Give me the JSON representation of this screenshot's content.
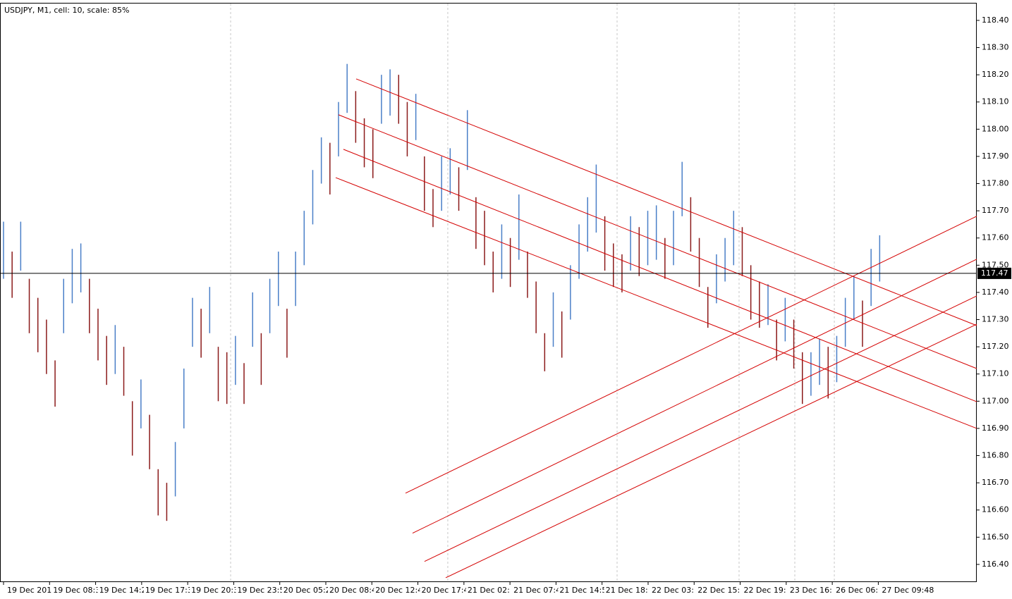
{
  "chart_data": {
    "type": "range_bar",
    "title": "USDJPY, M1, cell: 10, scale: 85%",
    "up_color": "#4a7fc8",
    "down_color": "#8b1a1a",
    "line_color": "#d40000",
    "price_line_color": "#000000",
    "xlim": [
      -0.41,
      113.3
    ],
    "ylim": [
      116.335,
      118.462
    ],
    "yticks": [
      {
        "value": 116.4,
        "label": "116.40"
      },
      {
        "value": 116.5,
        "label": "116.50"
      },
      {
        "value": 116.6,
        "label": "116.60"
      },
      {
        "value": 116.7,
        "label": "116.70"
      },
      {
        "value": 116.8,
        "label": "116.80"
      },
      {
        "value": 116.9,
        "label": "116.90"
      },
      {
        "value": 117.0,
        "label": "117.00"
      },
      {
        "value": 117.1,
        "label": "117.10"
      },
      {
        "value": 117.2,
        "label": "117.20"
      },
      {
        "value": 117.3,
        "label": "117.30"
      },
      {
        "value": 117.4,
        "label": "117.40"
      },
      {
        "value": 117.5,
        "label": "117.50"
      },
      {
        "value": 117.6,
        "label": "117.60"
      },
      {
        "value": 117.7,
        "label": "117.70"
      },
      {
        "value": 117.8,
        "label": "117.80"
      },
      {
        "value": 117.9,
        "label": "117.90"
      },
      {
        "value": 118.0,
        "label": "118.00"
      },
      {
        "value": 118.1,
        "label": "118.10"
      },
      {
        "value": 118.2,
        "label": "118.20"
      },
      {
        "value": 118.3,
        "label": "118.30"
      },
      {
        "value": 118.4,
        "label": "118.40"
      }
    ],
    "xticks": [
      {
        "value": 0,
        "label": "19 Dec 2011"
      },
      {
        "value": 5.36,
        "label": "19 Dec 08:3"
      },
      {
        "value": 10.72,
        "label": "19 Dec 14:2"
      },
      {
        "value": 16.08,
        "label": "19 Dec 17:3"
      },
      {
        "value": 21.44,
        "label": "19 Dec 20:3"
      },
      {
        "value": 26.8,
        "label": "19 Dec 23:5"
      },
      {
        "value": 32.16,
        "label": "20 Dec 05:2"
      },
      {
        "value": 37.52,
        "label": "20 Dec 08:4"
      },
      {
        "value": 42.88,
        "label": "20 Dec 12:4"
      },
      {
        "value": 48.24,
        "label": "20 Dec 17:4"
      },
      {
        "value": 53.6,
        "label": "21 Dec 02:"
      },
      {
        "value": 58.96,
        "label": "21 Dec 07:4"
      },
      {
        "value": 64.32,
        "label": "21 Dec 14:5"
      },
      {
        "value": 69.68,
        "label": "21 Dec 18:"
      },
      {
        "value": 75.04,
        "label": "22 Dec 03:"
      },
      {
        "value": 80.4,
        "label": "22 Dec 15:"
      },
      {
        "value": 85.76,
        "label": "22 Dec 19:"
      },
      {
        "value": 91.12,
        "label": "23 Dec 16:"
      },
      {
        "value": 96.48,
        "label": "26 Dec 06:"
      },
      {
        "value": 101.84,
        "label": "27 Dec 09:48"
      }
    ],
    "separators": [
      26.44,
      51.72,
      71.43,
      85.63,
      92.12,
      96.72
    ],
    "current_price": 117.47,
    "highs": [
      117.66,
      117.55,
      117.66,
      117.45,
      117.38,
      117.3,
      117.15,
      117.45,
      117.56,
      117.58,
      117.45,
      117.34,
      117.24,
      117.28,
      117.2,
      117.0,
      117.08,
      116.95,
      116.75,
      116.7,
      116.85,
      117.12,
      117.38,
      117.34,
      117.42,
      117.2,
      117.18,
      117.24,
      117.14,
      117.4,
      117.25,
      117.45,
      117.55,
      117.34,
      117.55,
      117.7,
      117.85,
      117.97,
      117.95,
      118.1,
      118.24,
      118.14,
      118.04,
      118.0,
      118.2,
      118.22,
      118.2,
      118.1,
      118.13,
      117.9,
      117.78,
      117.9,
      117.93,
      117.86,
      118.07,
      117.75,
      117.7,
      117.55,
      117.65,
      117.6,
      117.76,
      117.55,
      117.44,
      117.25,
      117.4,
      117.33,
      117.5,
      117.65,
      117.75,
      117.87,
      117.68,
      117.58,
      117.54,
      117.68,
      117.64,
      117.7,
      117.72,
      117.6,
      117.7,
      117.88,
      117.75,
      117.6,
      117.42,
      117.54,
      117.6,
      117.7,
      117.64,
      117.5,
      117.44,
      117.43,
      117.3,
      117.38,
      117.3,
      117.18,
      117.18,
      117.23,
      117.2,
      117.24,
      117.38,
      117.46,
      117.37,
      117.56,
      117.61
    ],
    "lows": [
      117.45,
      117.38,
      117.48,
      117.25,
      117.18,
      117.1,
      116.98,
      117.25,
      117.36,
      117.4,
      117.25,
      117.15,
      117.06,
      117.1,
      117.02,
      116.8,
      116.9,
      116.75,
      116.58,
      116.56,
      116.65,
      116.9,
      117.2,
      117.16,
      117.25,
      117.0,
      116.99,
      117.06,
      116.99,
      117.2,
      117.06,
      117.25,
      117.35,
      117.16,
      117.35,
      117.5,
      117.65,
      117.8,
      117.76,
      117.9,
      118.06,
      117.95,
      117.86,
      117.82,
      118.02,
      118.05,
      118.02,
      117.9,
      117.96,
      117.7,
      117.64,
      117.7,
      117.76,
      117.7,
      117.85,
      117.56,
      117.5,
      117.4,
      117.45,
      117.42,
      117.52,
      117.38,
      117.25,
      117.11,
      117.2,
      117.16,
      117.3,
      117.45,
      117.55,
      117.62,
      117.48,
      117.42,
      117.4,
      117.48,
      117.46,
      117.5,
      117.52,
      117.45,
      117.5,
      117.68,
      117.55,
      117.42,
      117.27,
      117.36,
      117.44,
      117.5,
      117.46,
      117.3,
      117.27,
      117.28,
      117.15,
      117.22,
      117.12,
      116.99,
      117.02,
      117.06,
      117.01,
      117.07,
      117.2,
      117.3,
      117.2,
      117.35,
      117.44
    ],
    "lines": [
      {
        "x": [
          41.05,
          113.3
        ],
        "y": [
          118.185,
          117.278
        ]
      },
      {
        "x": [
          39.0,
          113.3
        ],
        "y": [
          118.053,
          117.12
        ]
      },
      {
        "x": [
          39.57,
          113.3
        ],
        "y": [
          117.926,
          116.998
        ]
      },
      {
        "x": [
          38.67,
          113.3
        ],
        "y": [
          117.822,
          116.9
        ]
      },
      {
        "x": [
          46.8,
          113.3
        ],
        "y": [
          116.662,
          117.68
        ]
      },
      {
        "x": [
          47.62,
          113.3
        ],
        "y": [
          116.515,
          117.522
        ]
      },
      {
        "x": [
          49.01,
          113.3
        ],
        "y": [
          116.411,
          117.387
        ]
      },
      {
        "x": [
          51.48,
          113.3
        ],
        "y": [
          116.351,
          117.283
        ]
      }
    ]
  }
}
